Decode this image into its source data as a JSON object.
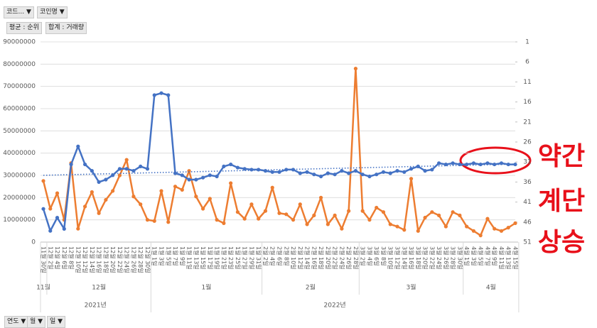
{
  "filters": {
    "fields": [
      "코드...",
      "코인명"
    ],
    "bottom_fields": [
      "연도",
      "월",
      "일"
    ]
  },
  "chart_data": {
    "type": "line",
    "categories": [
      "11월 30일",
      "12월 2일",
      "12월 4일",
      "12월 6일",
      "12월 8일",
      "12월 10일",
      "12월 12일",
      "12월 14일",
      "12월 16일",
      "12월 18일",
      "12월 20일",
      "12월 22일",
      "12월 24일",
      "12월 26일",
      "12월 28일",
      "12월 30일",
      "1월 1일",
      "1월 3일",
      "1월 5일",
      "1월 7일",
      "1월 9일",
      "1월 11일",
      "1월 13일",
      "1월 15일",
      "1월 17일",
      "1월 19일",
      "1월 21일",
      "1월 23일",
      "1월 25일",
      "1월 27일",
      "1월 29일",
      "1월 31일",
      "2월 2일",
      "2월 4일",
      "2월 6일",
      "2월 8일",
      "2월 10일",
      "2월 12일",
      "2월 14일",
      "2월 16일",
      "2월 18일",
      "2월 20일",
      "2월 22일",
      "2월 24일",
      "2월 26일",
      "2월 28일",
      "3월 2일",
      "3월 4일",
      "3월 6일",
      "3월 8일",
      "3월 10일",
      "3월 12일",
      "3월 14일",
      "3월 16일",
      "3월 18일",
      "3월 20일",
      "3월 22일",
      "3월 24일",
      "3월 26일",
      "3월 28일",
      "3월 30일",
      "4월 1일",
      "4월 3일",
      "4월 5일",
      "4월 7일",
      "4월 9일",
      "4월 11일",
      "4월 13일",
      "4월 15일"
    ],
    "x_groups": [
      {
        "label": "2021년",
        "months": [
          "11월",
          "12월"
        ]
      },
      {
        "label": "2022년",
        "months": [
          "1월",
          "2월",
          "3월",
          "4월"
        ]
      }
    ],
    "series": [
      {
        "name": "평균 : 순위",
        "color": "#4472c4",
        "axis": "y2",
        "values": [
          42.7,
          48.2,
          44.9,
          47.7,
          31.6,
          27.1,
          31.6,
          33.2,
          36.0,
          35.4,
          34.3,
          32.7,
          32.7,
          33.2,
          32.1,
          32.7,
          14.3,
          13.8,
          14.3,
          33.8,
          34.3,
          35.4,
          35.4,
          34.9,
          34.3,
          34.6,
          32.1,
          31.6,
          32.4,
          32.7,
          32.9,
          32.9,
          33.2,
          33.5,
          33.5,
          32.9,
          32.9,
          33.8,
          33.5,
          34.1,
          34.6,
          33.8,
          34.1,
          33.2,
          33.8,
          33.2,
          34.1,
          34.6,
          34.1,
          33.5,
          33.8,
          33.2,
          33.5,
          32.7,
          32.1,
          33.2,
          32.9,
          31.3,
          31.6,
          31.3,
          31.6,
          31.6,
          31.3,
          31.6,
          31.3,
          31.6,
          31.3,
          31.6,
          31.6
        ]
      },
      {
        "name": "합계 : 거래량",
        "color": "#ed7d31",
        "values": [
          27500000,
          15000000,
          22000000,
          10000000,
          35500000,
          6000000,
          16000000,
          22500000,
          13000000,
          19000000,
          23000000,
          30000000,
          37000000,
          20500000,
          17000000,
          10000000,
          9500000,
          23000000,
          9000000,
          25000000,
          23500000,
          32000000,
          20500000,
          15000000,
          19500000,
          10000000,
          8500000,
          26500000,
          13500000,
          10500000,
          17000000,
          10500000,
          14000000,
          24500000,
          13000000,
          12500000,
          10000000,
          17000000,
          8000000,
          12000000,
          20000000,
          8000000,
          12000000,
          6000000,
          14000000,
          78000000,
          14000000,
          10000000,
          15500000,
          13500000,
          8000000,
          7000000,
          5500000,
          28500000,
          5000000,
          11000000,
          13500000,
          12000000,
          7000000,
          13500000,
          12000000,
          7000000,
          5000000,
          3000000,
          10500000,
          6000000,
          5000000,
          6500000,
          8500000
        ]
      }
    ],
    "ylim": [
      0,
      90000000
    ],
    "yticks": [
      0,
      10000000,
      20000000,
      30000000,
      40000000,
      50000000,
      60000000,
      70000000,
      80000000,
      90000000
    ],
    "y2lim": [
      1,
      51
    ],
    "y2_reversed": true,
    "y2ticks": [
      1,
      6,
      11,
      16,
      21,
      26,
      31,
      36,
      41,
      46,
      51
    ],
    "grid": true,
    "trendline": "linear",
    "annotations": [
      "약간",
      "계단",
      "상승"
    ]
  }
}
